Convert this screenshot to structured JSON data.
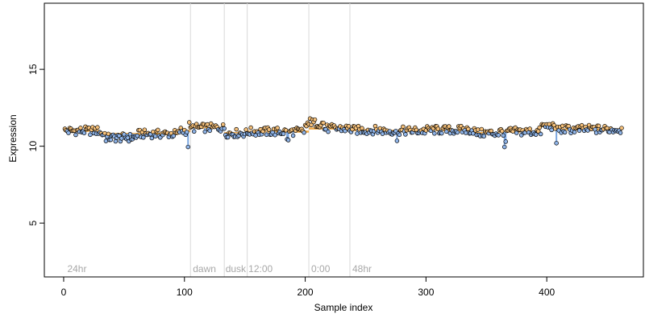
{
  "chart_data": {
    "type": "scatter",
    "title": "",
    "xlabel": "Sample index",
    "ylabel": "Expression",
    "xlim": [
      -16,
      480
    ],
    "ylim": [
      1.5,
      19.3
    ],
    "xticks": [
      0,
      100,
      200,
      300,
      400
    ],
    "yticks": [
      5,
      10,
      15
    ],
    "grid": false,
    "vlines": [
      105,
      133,
      152,
      203,
      237
    ],
    "annotations": [
      {
        "label": "24hr",
        "x": 3
      },
      {
        "label": "dawn",
        "x": 107
      },
      {
        "label": "dusk",
        "x": 134
      },
      {
        "label": "12:00",
        "x": 153
      },
      {
        "label": "0:00",
        "x": 205
      },
      {
        "label": "48hr",
        "x": 239
      }
    ],
    "colors": {
      "above": "#f5c07a",
      "below": "#8fb4e8",
      "fitted_line": "#f0a640",
      "segment_below": "#7aa6e0",
      "vline": "#d8d8d8",
      "annotation": "#a8a8a8"
    },
    "series": [
      {
        "fitted_steps": [
          {
            "x": [
              0,
              30
            ],
            "y": 11.0
          },
          {
            "x": [
              30,
              95
            ],
            "y": 10.8
          },
          {
            "x": [
              95,
              105
            ],
            "y": 11.0
          },
          {
            "x": [
              105,
              133
            ],
            "y": 11.2
          },
          {
            "x": [
              133,
              152
            ],
            "y": 10.85
          },
          {
            "x": [
              152,
              203
            ],
            "y": 10.95
          },
          {
            "x": [
              203,
              237
            ],
            "y": 11.15
          },
          {
            "x": [
              237,
              262
            ],
            "y": 11.05
          },
          {
            "x": [
              262,
              300
            ],
            "y": 11.0
          },
          {
            "x": [
              300,
              340
            ],
            "y": 11.05
          },
          {
            "x": [
              340,
              360
            ],
            "y": 10.85
          },
          {
            "x": [
              360,
              395
            ],
            "y": 10.95
          },
          {
            "x": [
              395,
              405
            ],
            "y": 11.3
          },
          {
            "x": [
              405,
              415
            ],
            "y": 11.1
          },
          {
            "x": [
              415,
              462
            ],
            "y": 11.1
          }
        ]
      }
    ]
  }
}
